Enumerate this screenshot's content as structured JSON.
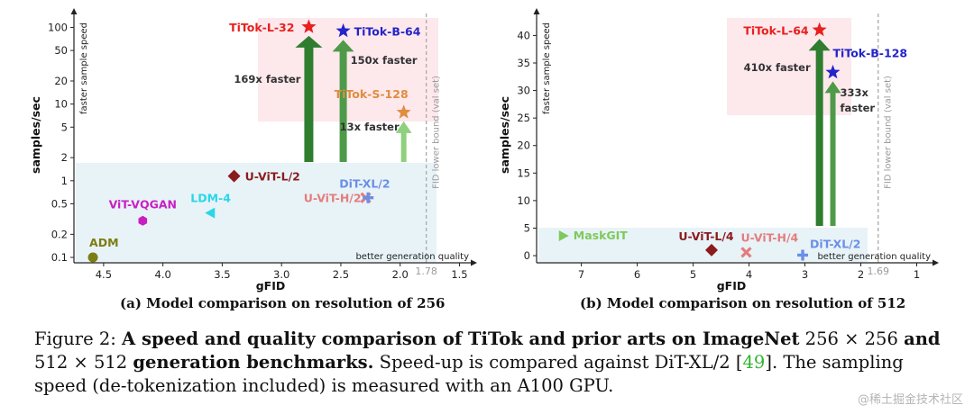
{
  "chart_data": [
    {
      "type": "scatter",
      "panel": "left",
      "caption": "(a) Model comparison on resolution of 256",
      "xlabel": "gFID",
      "ylabel": "samples/sec",
      "y_scale": "log",
      "x_inverted": true,
      "xlim": [
        4.75,
        1.42
      ],
      "ylim": [
        0.085,
        140
      ],
      "x_ticks": [
        "4.5",
        "4.0",
        "3.5",
        "3.0",
        "2.5",
        "2.0",
        "1.5"
      ],
      "y_ticks": [
        "0.1",
        "0.2",
        "0.5",
        "1",
        "2",
        "5",
        "10",
        "20",
        "50",
        "100"
      ],
      "fid_lower_bound": {
        "value": 1.78,
        "tick_label": "1.78",
        "label": "FID lower bound (val set)"
      },
      "axis_arrow_labels": {
        "x": "better generation quality",
        "y": "faster sample speed"
      },
      "points": [
        {
          "name": "ADM",
          "x": 4.59,
          "y": 0.1,
          "marker": "circle",
          "color": "#7c7d12"
        },
        {
          "name": "ViT-VQGAN",
          "x": 4.17,
          "y": 0.3,
          "marker": "hexagon",
          "color": "#c81fc4"
        },
        {
          "name": "LDM-4",
          "x": 3.6,
          "y": 0.38,
          "marker": "triangle-left",
          "color": "#2ad6e8"
        },
        {
          "name": "U-ViT-L/2",
          "x": 3.4,
          "y": 1.15,
          "marker": "diamond",
          "color": "#8b1c1c"
        },
        {
          "name": "U-ViT-H/2",
          "x": 2.29,
          "y": 0.6,
          "marker": "x",
          "color": "#e47d7d"
        },
        {
          "name": "DiT-XL/2",
          "x": 2.27,
          "y": 0.6,
          "marker": "plus",
          "color": "#6a8fe6"
        },
        {
          "name": "TiTok-L-32",
          "x": 2.77,
          "y": 101.6,
          "marker": "star",
          "color": "#e8201e"
        },
        {
          "name": "TiTok-B-64",
          "x": 2.48,
          "y": 89.8,
          "marker": "star",
          "color": "#2424c8"
        },
        {
          "name": "TiTok-S-128",
          "x": 1.97,
          "y": 7.8,
          "marker": "star",
          "color": "#e08d3f"
        }
      ],
      "speedups": [
        {
          "label": "169x faster",
          "x": 2.77
        },
        {
          "label": "150x faster",
          "x": 2.48
        },
        {
          "label": "13x faster",
          "x": 1.97
        }
      ]
    },
    {
      "type": "scatter",
      "panel": "right",
      "caption": "(b) Model comparison on resolution of 512",
      "xlabel": "gFID",
      "ylabel": "samples/sec",
      "y_scale": "linear",
      "x_inverted": true,
      "xlim": [
        7.8,
        0.75
      ],
      "ylim": [
        -1.3,
        43.5
      ],
      "x_ticks": [
        "7",
        "6",
        "5",
        "4",
        "3",
        "2",
        "1"
      ],
      "y_ticks": [
        "0",
        "5",
        "10",
        "15",
        "20",
        "25",
        "30",
        "35",
        "40"
      ],
      "fid_lower_bound": {
        "value": 1.69,
        "tick_label": "1.69",
        "label": "FID lower bound (val set)"
      },
      "axis_arrow_labels": {
        "x": "better generation quality",
        "y": "faster sample speed"
      },
      "points": [
        {
          "name": "MaskGIT",
          "x": 7.32,
          "y": 3.6,
          "marker": "triangle-right",
          "color": "#7ec95a"
        },
        {
          "name": "U-ViT-L/4",
          "x": 4.67,
          "y": 1.0,
          "marker": "diamond",
          "color": "#8b1c1c"
        },
        {
          "name": "U-ViT-H/4",
          "x": 4.05,
          "y": 0.6,
          "marker": "x",
          "color": "#e47d7d"
        },
        {
          "name": "DiT-XL/2",
          "x": 3.04,
          "y": 0.1,
          "marker": "plus",
          "color": "#6a8fe6"
        },
        {
          "name": "TiTok-L-64",
          "x": 2.74,
          "y": 41.0,
          "marker": "star",
          "color": "#e8201e"
        },
        {
          "name": "TiTok-B-128",
          "x": 2.5,
          "y": 33.3,
          "marker": "star",
          "color": "#2424c8"
        }
      ],
      "speedups": [
        {
          "label": "410x faster",
          "x": 2.74
        },
        {
          "label": "333x",
          "x": 2.5
        },
        {
          "label": "faster",
          "x": 2.5
        }
      ]
    }
  ],
  "figure_caption": {
    "prefix": "Figure 2: ",
    "bold1": "A speed and quality comparison of TiTok and prior arts on ImageNet",
    "math1": " 256 × 256 ",
    "bold2": "and",
    "math2": "512 × 512 ",
    "bold3": "generation benchmarks.",
    "text1": " Speed-up is compared against DiT-XL/2 [",
    "cite": "49",
    "text2": "]. The sampling speed (de-tokenization included) is measured with an A100 GPU."
  },
  "watermark": "@稀土掘金技术社区"
}
